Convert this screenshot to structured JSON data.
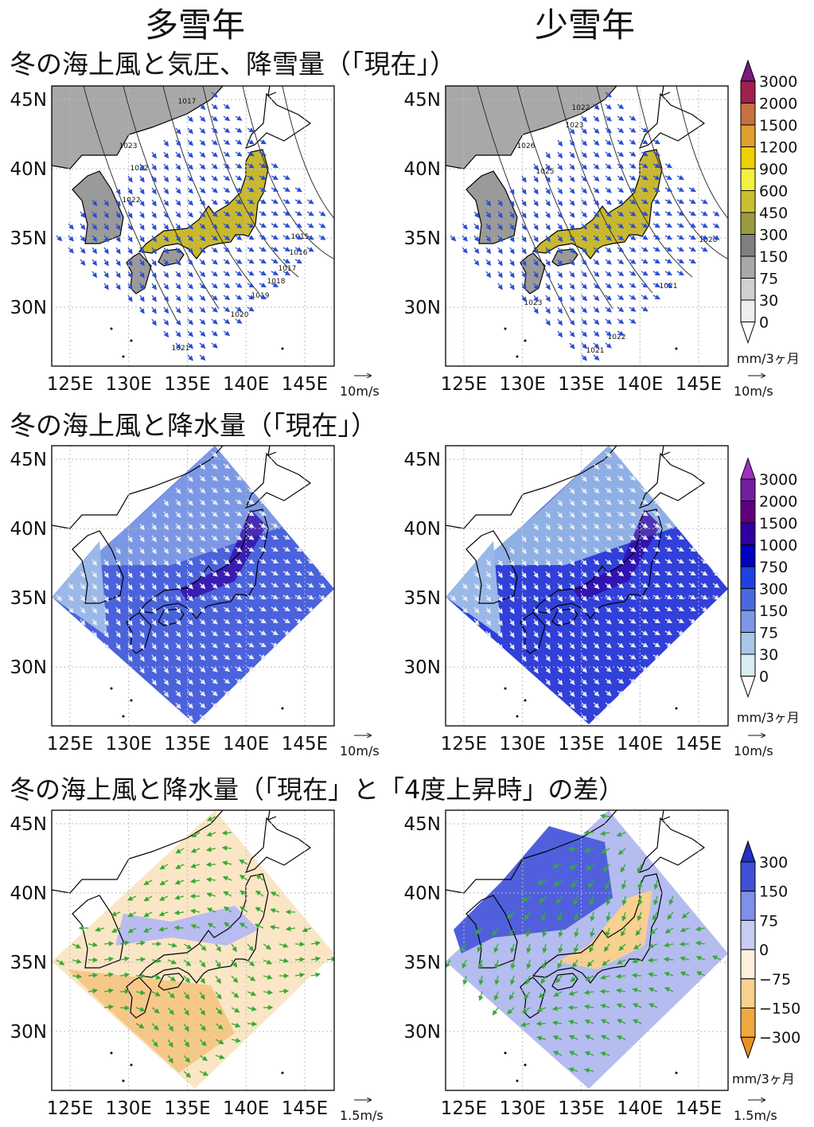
{
  "column_headers": [
    "多雪年",
    "少雪年"
  ],
  "axes": {
    "lat_labels": [
      "45N",
      "40N",
      "35N",
      "30N"
    ],
    "lon_labels": [
      "125E",
      "130E",
      "135E",
      "140E",
      "145E"
    ]
  },
  "rows": [
    {
      "title": "冬の海上風と気圧、降雪量（「現在」）",
      "panels": [
        {
          "isobar_labels": [
            "1017",
            "1023",
            "1022",
            "1022",
            "1015",
            "1016",
            "1017",
            "1018",
            "1019",
            "1020",
            "1021"
          ],
          "reference_vector": "10m/s"
        },
        {
          "isobar_labels": [
            "1022",
            "1023",
            "1026",
            "1025",
            "1020",
            "1021",
            "1022",
            "1023",
            "1021"
          ],
          "reference_vector": "10m/s"
        }
      ],
      "colorbar": {
        "labels": [
          "3000",
          "2000",
          "1500",
          "1200",
          "900",
          "600",
          "450",
          "300",
          "150",
          "75",
          "30",
          "0"
        ],
        "colors": [
          "#7a1a7a",
          "#a02050",
          "#c87040",
          "#e0a030",
          "#f0d000",
          "#f4f040",
          "#c8c030",
          "#9a9a40",
          "#808080",
          "#a8a8a8",
          "#d0d0d0",
          "#eeeeee",
          "#ffffff"
        ],
        "unit": "mm/3ヶ月"
      }
    },
    {
      "title": "冬の海上風と降水量（「現在」）",
      "panels": [
        {
          "reference_vector": "10m/s"
        },
        {
          "reference_vector": "10m/s"
        }
      ],
      "colorbar": {
        "labels": [
          "3000",
          "2000",
          "1500",
          "1000",
          "750",
          "300",
          "150",
          "75",
          "30",
          "0"
        ],
        "colors": [
          "#a030c0",
          "#7020a0",
          "#600080",
          "#3000a0",
          "#0000c0",
          "#2040e0",
          "#4a68e0",
          "#7c98e4",
          "#a8c8e8",
          "#d8ecf4",
          "#ffffff"
        ],
        "unit": "mm/3ヶ月"
      }
    },
    {
      "title": "冬の海上風と降水量（「現在」と「4度上昇時」の差）",
      "panels": [
        {
          "reference_vector": "1.5m/s"
        },
        {
          "reference_vector": "1.5m/s"
        }
      ],
      "colorbar": {
        "labels": [
          "300",
          "150",
          "75",
          "0",
          "−75",
          "−150",
          "−300"
        ],
        "colors": [
          "#2030c0",
          "#4050d8",
          "#8090e8",
          "#c8ccf4",
          "#fdf0dc",
          "#f8d090",
          "#f0a840",
          "#e89020"
        ],
        "unit": "mm/3ヶ月"
      }
    }
  ]
}
